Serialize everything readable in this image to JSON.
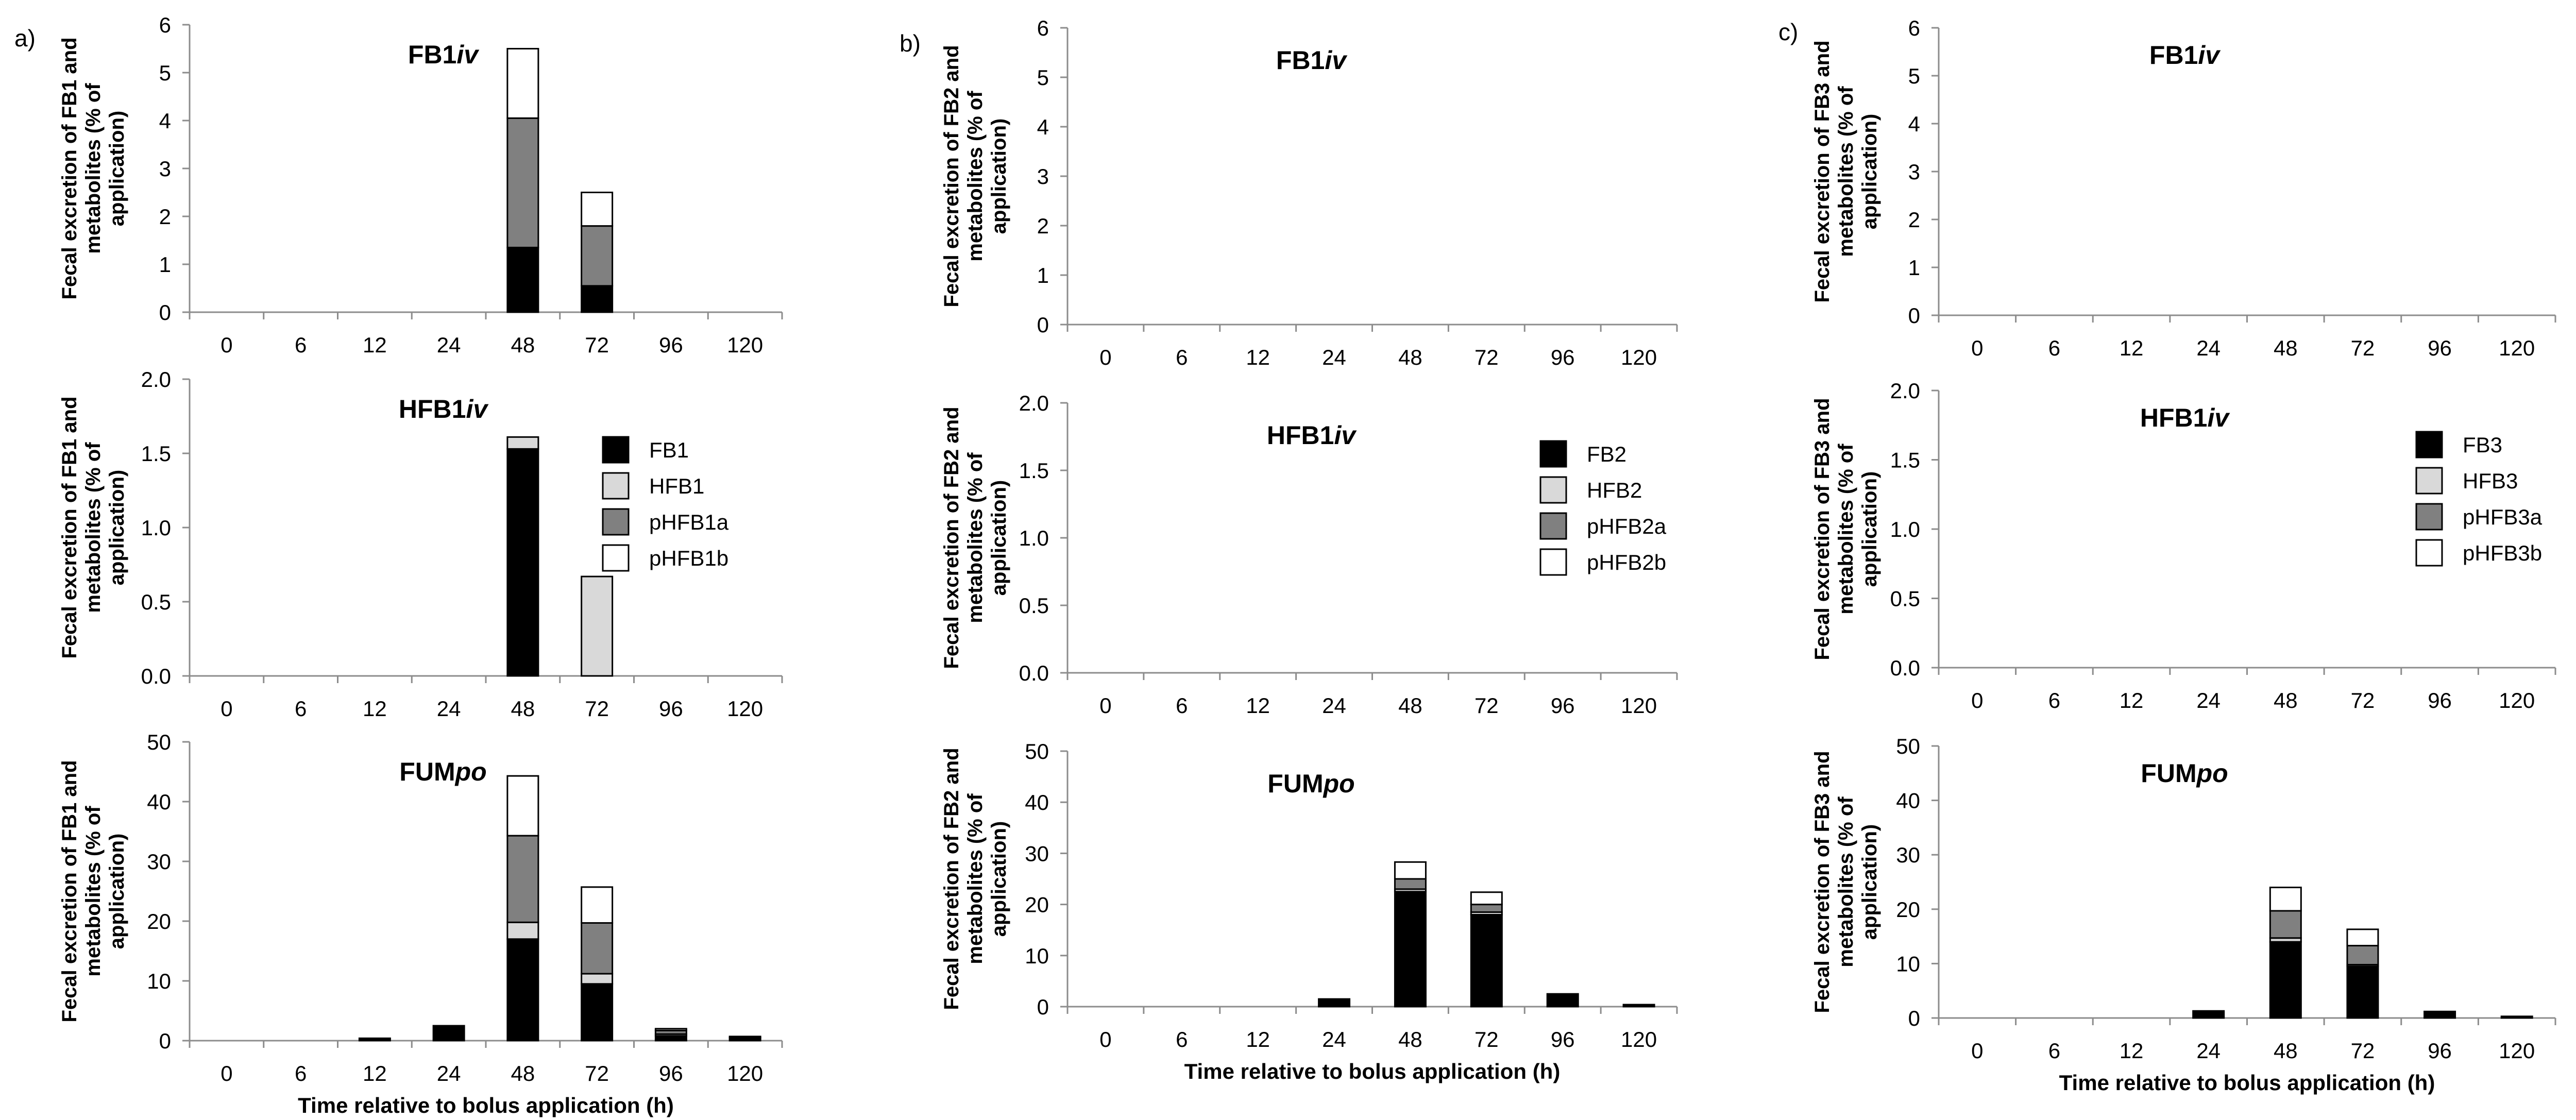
{
  "figure": {
    "x_ticks": [
      "0",
      "6",
      "12",
      "24",
      "48",
      "72",
      "96",
      "120"
    ],
    "colors": {
      "s1": "#000000",
      "s2": "#d9d9d9",
      "s3": "#808080",
      "s4": "#ffffff",
      "edge": "#000000",
      "axis": "#8c8c8c"
    },
    "panels": [
      {
        "letter": "a)",
        "legend": [
          "FB1",
          "HFB1",
          "pHFB1a",
          "pHFB1b"
        ],
        "ylabel_lines": [
          "Fecal excretion of FB1 and",
          "metabolites (% of",
          "application)"
        ],
        "xlabel": "Time relative to bolus application (h)",
        "charts": [
          {
            "title_main": "FB1",
            "title_italic": "iv",
            "yticks": [
              "0",
              "1",
              "2",
              "3",
              "4",
              "5",
              "6"
            ]
          },
          {
            "title_main": "HFB1",
            "title_italic": "iv",
            "yticks": [
              "0.0",
              "0.5",
              "1.0",
              "1.5",
              "2.0"
            ]
          },
          {
            "title_main": "FUM",
            "title_italic": "po",
            "yticks": [
              "0",
              "10",
              "20",
              "30",
              "40",
              "50"
            ]
          }
        ]
      },
      {
        "letter": "b)",
        "legend": [
          "FB2",
          "HFB2",
          "pHFB2a",
          "pHFB2b"
        ],
        "ylabel_lines": [
          "Fecal excretion of FB2 and",
          "metabolites (% of",
          "application)"
        ],
        "xlabel": "Time relative to bolus application (h)",
        "charts": [
          {
            "title_main": "FB1",
            "title_italic": "iv",
            "yticks": [
              "0",
              "1",
              "2",
              "3",
              "4",
              "5",
              "6"
            ]
          },
          {
            "title_main": "HFB1",
            "title_italic": "iv",
            "yticks": [
              "0.0",
              "0.5",
              "1.0",
              "1.5",
              "2.0"
            ]
          },
          {
            "title_main": "FUM",
            "title_italic": "po",
            "yticks": [
              "0",
              "10",
              "20",
              "30",
              "40",
              "50"
            ]
          }
        ]
      },
      {
        "letter": "c)",
        "legend": [
          "FB3",
          "HFB3",
          "pHFB3a",
          "pHFB3b"
        ],
        "ylabel_lines": [
          "Fecal excretion of FB3 and",
          "metabolites (% of",
          "application)"
        ],
        "xlabel": "Time relative to bolus application (h)",
        "charts": [
          {
            "title_main": "FB1",
            "title_italic": "iv",
            "yticks": [
              "0",
              "1",
              "2",
              "3",
              "4",
              "5",
              "6"
            ]
          },
          {
            "title_main": "HFB1",
            "title_italic": "iv",
            "yticks": [
              "0.0",
              "0.5",
              "1.0",
              "1.5",
              "2.0"
            ]
          },
          {
            "title_main": "FUM",
            "title_italic": "po",
            "yticks": [
              "0",
              "10",
              "20",
              "30",
              "40",
              "50"
            ]
          }
        ]
      }
    ]
  },
  "chart_data": [
    {
      "type": "bar",
      "stacked": true,
      "panel": "a)",
      "title": "FB1iv",
      "ylabel": "Fecal excretion of FB1 and metabolites (% of application)",
      "xlabel": "",
      "ylim": [
        0,
        6
      ],
      "categories": [
        "0",
        "6",
        "12",
        "24",
        "48",
        "72",
        "96",
        "120"
      ],
      "series": [
        {
          "name": "FB1",
          "values": [
            0,
            0,
            0,
            0,
            1.35,
            0.55,
            0,
            0
          ]
        },
        {
          "name": "HFB1",
          "values": [
            0,
            0,
            0,
            0,
            0,
            0,
            0,
            0
          ]
        },
        {
          "name": "pHFB1a",
          "values": [
            0,
            0,
            0,
            0,
            2.7,
            1.25,
            0,
            0
          ]
        },
        {
          "name": "pHFB1b",
          "values": [
            0,
            0,
            0,
            0,
            1.45,
            0.7,
            0,
            0
          ]
        }
      ]
    },
    {
      "type": "bar",
      "stacked": true,
      "panel": "a)",
      "title": "HFB1iv",
      "ylabel": "Fecal excretion of FB1 and metabolites (% of application)",
      "xlabel": "",
      "ylim": [
        0,
        2
      ],
      "categories": [
        "0",
        "6",
        "12",
        "24",
        "48",
        "72",
        "96",
        "120"
      ],
      "series": [
        {
          "name": "FB1",
          "values": [
            0,
            0,
            0,
            0,
            1.53,
            0,
            0,
            0
          ]
        },
        {
          "name": "HFB1",
          "values": [
            0,
            0,
            0,
            0,
            0.08,
            0.67,
            0,
            0
          ]
        },
        {
          "name": "pHFB1a",
          "values": [
            0,
            0,
            0,
            0,
            0,
            0,
            0,
            0
          ]
        },
        {
          "name": "pHFB1b",
          "values": [
            0,
            0,
            0,
            0,
            0,
            0,
            0,
            0
          ]
        }
      ]
    },
    {
      "type": "bar",
      "stacked": true,
      "panel": "a)",
      "title": "FUMpo",
      "ylabel": "Fecal excretion of FB1 and metabolites (% of application)",
      "xlabel": "Time relative to bolus application (h)",
      "ylim": [
        0,
        50
      ],
      "categories": [
        "0",
        "6",
        "12",
        "24",
        "48",
        "72",
        "96",
        "120"
      ],
      "series": [
        {
          "name": "FB1",
          "values": [
            0,
            0,
            0.4,
            2.5,
            17,
            9.5,
            0.8,
            0.5
          ]
        },
        {
          "name": "HFB1",
          "values": [
            0,
            0,
            0,
            0,
            2.8,
            1.7,
            0.3,
            0
          ]
        },
        {
          "name": "pHFB1a",
          "values": [
            0,
            0,
            0,
            0,
            14.5,
            8.5,
            0.6,
            0.2
          ]
        },
        {
          "name": "pHFB1b",
          "values": [
            0,
            0,
            0,
            0,
            10,
            6,
            0.3,
            0
          ]
        }
      ]
    },
    {
      "type": "bar",
      "stacked": true,
      "panel": "b)",
      "title": "FB1iv",
      "ylabel": "Fecal excretion of FB2 and metabolites (% of application)",
      "xlabel": "",
      "ylim": [
        0,
        6
      ],
      "categories": [
        "0",
        "6",
        "12",
        "24",
        "48",
        "72",
        "96",
        "120"
      ],
      "series": [
        {
          "name": "FB2",
          "values": [
            0,
            0,
            0,
            0,
            0,
            0,
            0,
            0
          ]
        },
        {
          "name": "HFB2",
          "values": [
            0,
            0,
            0,
            0,
            0,
            0,
            0,
            0
          ]
        },
        {
          "name": "pHFB2a",
          "values": [
            0,
            0,
            0,
            0,
            0,
            0,
            0,
            0
          ]
        },
        {
          "name": "pHFB2b",
          "values": [
            0,
            0,
            0,
            0,
            0,
            0,
            0,
            0
          ]
        }
      ]
    },
    {
      "type": "bar",
      "stacked": true,
      "panel": "b)",
      "title": "HFB1iv",
      "ylabel": "Fecal excretion of FB2 and metabolites (% of application)",
      "xlabel": "",
      "ylim": [
        0,
        2
      ],
      "categories": [
        "0",
        "6",
        "12",
        "24",
        "48",
        "72",
        "96",
        "120"
      ],
      "series": [
        {
          "name": "FB2",
          "values": [
            0,
            0,
            0,
            0,
            0,
            0,
            0,
            0
          ]
        },
        {
          "name": "HFB2",
          "values": [
            0,
            0,
            0,
            0,
            0,
            0,
            0,
            0
          ]
        },
        {
          "name": "pHFB2a",
          "values": [
            0,
            0,
            0,
            0,
            0,
            0,
            0,
            0
          ]
        },
        {
          "name": "pHFB2b",
          "values": [
            0,
            0,
            0,
            0,
            0,
            0,
            0,
            0
          ]
        }
      ]
    },
    {
      "type": "bar",
      "stacked": true,
      "panel": "b)",
      "title": "FUMpo",
      "ylabel": "Fecal excretion of FB2 and metabolites (% of application)",
      "xlabel": "Time relative to bolus application (h)",
      "ylim": [
        0,
        50
      ],
      "categories": [
        "0",
        "6",
        "12",
        "24",
        "48",
        "72",
        "96",
        "120"
      ],
      "series": [
        {
          "name": "FB2",
          "values": [
            0,
            0,
            0,
            1.5,
            22.5,
            18,
            2.5,
            0.4
          ]
        },
        {
          "name": "HFB2",
          "values": [
            0,
            0,
            0,
            0,
            0.5,
            0.5,
            0,
            0
          ]
        },
        {
          "name": "pHFB2a",
          "values": [
            0,
            0,
            0,
            0,
            2,
            1.5,
            0,
            0
          ]
        },
        {
          "name": "pHFB2b",
          "values": [
            0,
            0,
            0,
            0,
            3.3,
            2.4,
            0,
            0
          ]
        }
      ]
    },
    {
      "type": "bar",
      "stacked": true,
      "panel": "c)",
      "title": "FB1iv",
      "ylabel": "Fecal excretion of FB3 and metabolites (% of application)",
      "xlabel": "",
      "ylim": [
        0,
        6
      ],
      "categories": [
        "0",
        "6",
        "12",
        "24",
        "48",
        "72",
        "96",
        "120"
      ],
      "series": [
        {
          "name": "FB3",
          "values": [
            0,
            0,
            0,
            0,
            0,
            0,
            0,
            0
          ]
        },
        {
          "name": "HFB3",
          "values": [
            0,
            0,
            0,
            0,
            0,
            0,
            0,
            0
          ]
        },
        {
          "name": "pHFB3a",
          "values": [
            0,
            0,
            0,
            0,
            0,
            0,
            0,
            0
          ]
        },
        {
          "name": "pHFB3b",
          "values": [
            0,
            0,
            0,
            0,
            0,
            0,
            0,
            0
          ]
        }
      ]
    },
    {
      "type": "bar",
      "stacked": true,
      "panel": "c)",
      "title": "HFB1iv",
      "ylabel": "Fecal excretion of FB3 and metabolites (% of application)",
      "xlabel": "",
      "ylim": [
        0,
        2
      ],
      "categories": [
        "0",
        "6",
        "12",
        "24",
        "48",
        "72",
        "96",
        "120"
      ],
      "series": [
        {
          "name": "FB3",
          "values": [
            0,
            0,
            0,
            0,
            0,
            0,
            0,
            0
          ]
        },
        {
          "name": "HFB3",
          "values": [
            0,
            0,
            0,
            0,
            0,
            0,
            0,
            0
          ]
        },
        {
          "name": "pHFB3a",
          "values": [
            0,
            0,
            0,
            0,
            0,
            0,
            0,
            0
          ]
        },
        {
          "name": "pHFB3b",
          "values": [
            0,
            0,
            0,
            0,
            0,
            0,
            0,
            0
          ]
        }
      ]
    },
    {
      "type": "bar",
      "stacked": true,
      "panel": "c)",
      "title": "FUMpo",
      "ylabel": "Fecal excretion of FB3 and metabolites (% of application)",
      "xlabel": "Time relative to bolus application (h)",
      "ylim": [
        0,
        50
      ],
      "categories": [
        "0",
        "6",
        "12",
        "24",
        "48",
        "72",
        "96",
        "120"
      ],
      "series": [
        {
          "name": "FB3",
          "values": [
            0,
            0,
            0,
            1.3,
            14,
            9.5,
            1.2,
            0.3
          ]
        },
        {
          "name": "HFB3",
          "values": [
            0,
            0,
            0,
            0,
            0.7,
            0.3,
            0,
            0
          ]
        },
        {
          "name": "pHFB3a",
          "values": [
            0,
            0,
            0,
            0,
            5,
            3.5,
            0,
            0
          ]
        },
        {
          "name": "pHFB3b",
          "values": [
            0,
            0,
            0,
            0,
            4.3,
            3,
            0,
            0
          ]
        }
      ]
    }
  ]
}
